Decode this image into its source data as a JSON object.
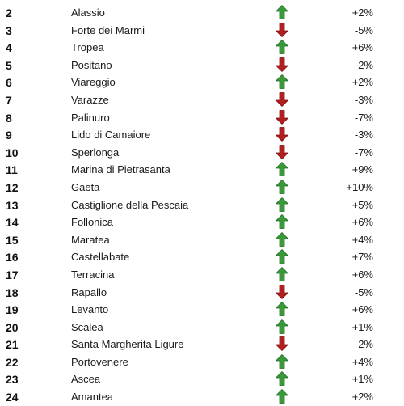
{
  "colors": {
    "up": "#3a9a3a",
    "up_edge": "#1f6e1f",
    "down": "#b31f1f",
    "down_edge": "#7a1010"
  },
  "rows": [
    {
      "rank": "2",
      "town": "Alassio",
      "trend": "up",
      "change": "+2%"
    },
    {
      "rank": "3",
      "town": "Forte dei Marmi",
      "trend": "down",
      "change": "-5%"
    },
    {
      "rank": "4",
      "town": "Tropea",
      "trend": "up",
      "change": "+6%"
    },
    {
      "rank": "5",
      "town": "Positano",
      "trend": "down",
      "change": "-2%"
    },
    {
      "rank": "6",
      "town": "Viareggio",
      "trend": "up",
      "change": "+2%"
    },
    {
      "rank": "7",
      "town": "Varazze",
      "trend": "down",
      "change": "-3%"
    },
    {
      "rank": "8",
      "town": "Palinuro",
      "trend": "down",
      "change": "-7%"
    },
    {
      "rank": "9",
      "town": "Lido di Camaiore",
      "trend": "down",
      "change": "-3%"
    },
    {
      "rank": "10",
      "town": "Sperlonga",
      "trend": "down",
      "change": "-7%"
    },
    {
      "rank": "11",
      "town": "Marina di Pietrasanta",
      "trend": "up",
      "change": "+9%"
    },
    {
      "rank": "12",
      "town": "Gaeta",
      "trend": "up",
      "change": "+10%"
    },
    {
      "rank": "13",
      "town": "Castiglione della Pescaia",
      "trend": "up",
      "change": "+5%"
    },
    {
      "rank": "14",
      "town": "Follonica",
      "trend": "up",
      "change": "+6%"
    },
    {
      "rank": "15",
      "town": "Maratea",
      "trend": "up",
      "change": "+4%"
    },
    {
      "rank": "16",
      "town": "Castellabate",
      "trend": "up",
      "change": "+7%"
    },
    {
      "rank": "17",
      "town": "Terracina",
      "trend": "up",
      "change": "+6%"
    },
    {
      "rank": "18",
      "town": "Rapallo",
      "trend": "down",
      "change": "-5%"
    },
    {
      "rank": "19",
      "town": "Levanto",
      "trend": "up",
      "change": "+6%"
    },
    {
      "rank": "20",
      "town": "Scalea",
      "trend": "up",
      "change": "+1%"
    },
    {
      "rank": "21",
      "town": "Santa Margherita Ligure",
      "trend": "down",
      "change": "-2%"
    },
    {
      "rank": "22",
      "town": "Portovenere",
      "trend": "up",
      "change": "+4%"
    },
    {
      "rank": "23",
      "town": "Ascea",
      "trend": "up",
      "change": "+1%"
    },
    {
      "rank": "24",
      "town": "Amantea",
      "trend": "up",
      "change": "+2%"
    }
  ]
}
